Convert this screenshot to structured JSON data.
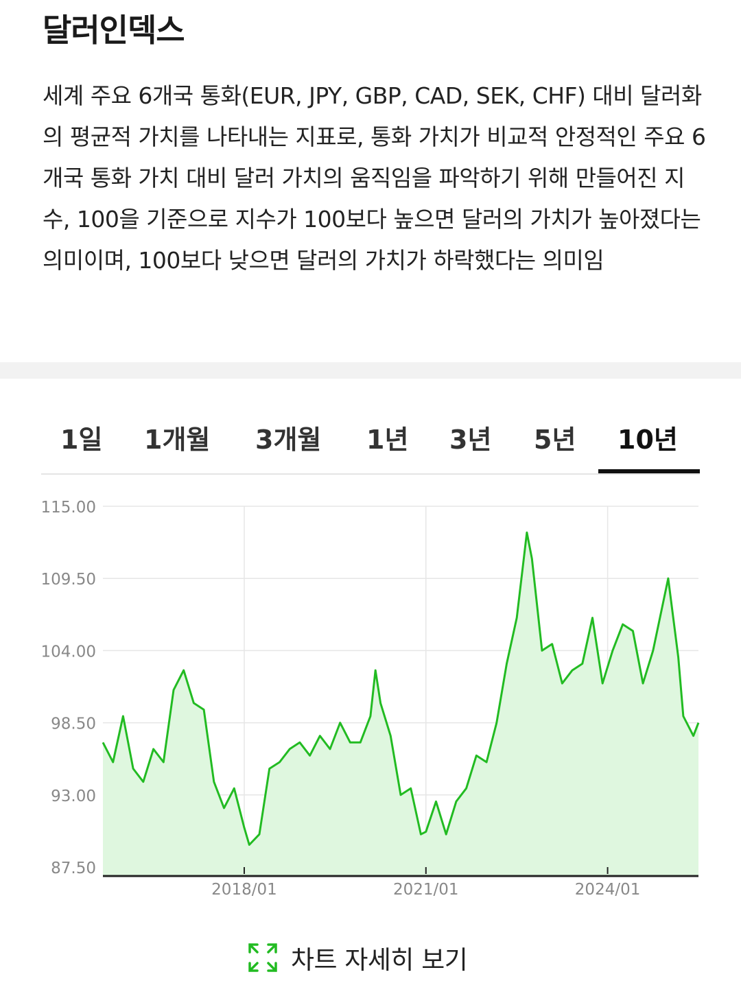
{
  "title": "달러인덱스",
  "description": "세계 주요 6개국 통화(EUR, JPY, GBP, CAD, SEK, CHF) 대비 달러화의 평균적 가치를 나타내는 지표로, 통화 가치가 비교적 안정적인 주요 6개국 통화 가치 대비 달러 가치의 움직임을 파악하기 위해 만들어진 지수, 100을 기준으로 지수가 100보다 높으면 달러의 가치가 높아졌다는 의미이며, 100보다 낮으면 달러의 가치가 하락했다는 의미임",
  "tabs": [
    {
      "label": "1일",
      "active": false
    },
    {
      "label": "1개월",
      "active": false
    },
    {
      "label": "3개월",
      "active": false
    },
    {
      "label": "1년",
      "active": false
    },
    {
      "label": "3년",
      "active": false
    },
    {
      "label": "5년",
      "active": false
    },
    {
      "label": "10년",
      "active": true
    }
  ],
  "detail_link": {
    "label": "차트 자세히 보기",
    "icon": "expand-icon"
  },
  "colors": {
    "line": "#22bb22",
    "fill": "#dff7df",
    "grid": "#e6e6e6",
    "axis": "#222222",
    "tick_text": "#888888"
  },
  "chart_data": {
    "type": "area",
    "title": "",
    "xlabel": "",
    "ylabel": "",
    "ylim": [
      87.5,
      115.0
    ],
    "xlim": [
      "2015-09",
      "2025-07"
    ],
    "y_ticks": [
      "115.00",
      "109.50",
      "104.00",
      "98.50",
      "93.00",
      "87.50"
    ],
    "x_ticks": [
      {
        "date": "2018-01",
        "label": "2018/01"
      },
      {
        "date": "2021-01",
        "label": "2021/01"
      },
      {
        "date": "2024-01",
        "label": "2024/01"
      }
    ],
    "grid": true,
    "series": [
      {
        "x": [
          "2015-09",
          "2015-11",
          "2016-01",
          "2016-03",
          "2016-05",
          "2016-07",
          "2016-09",
          "2016-11",
          "2017-01",
          "2017-03",
          "2017-05",
          "2017-07",
          "2017-09",
          "2017-11",
          "2018-01",
          "2018-02",
          "2018-04",
          "2018-06",
          "2018-08",
          "2018-10",
          "2018-12",
          "2019-02",
          "2019-04",
          "2019-06",
          "2019-08",
          "2019-10",
          "2019-12",
          "2020-02",
          "2020-03",
          "2020-04",
          "2020-06",
          "2020-08",
          "2020-10",
          "2020-12",
          "2021-01",
          "2021-03",
          "2021-05",
          "2021-07",
          "2021-09",
          "2021-11",
          "2022-01",
          "2022-03",
          "2022-05",
          "2022-07",
          "2022-09",
          "2022-10",
          "2022-12",
          "2023-02",
          "2023-04",
          "2023-06",
          "2023-08",
          "2023-10",
          "2023-12",
          "2024-02",
          "2024-04",
          "2024-06",
          "2024-08",
          "2024-10",
          "2025-01",
          "2025-03",
          "2025-04",
          "2025-06",
          "2025-07"
        ],
        "y": [
          97.0,
          95.5,
          99.0,
          95.0,
          94.0,
          96.5,
          95.5,
          101.0,
          102.5,
          100.0,
          99.5,
          94.0,
          92.0,
          93.5,
          90.5,
          89.2,
          90.0,
          95.0,
          95.5,
          96.5,
          97.0,
          96.0,
          97.5,
          96.5,
          98.5,
          97.0,
          97.0,
          99.0,
          102.5,
          100.0,
          97.5,
          93.0,
          93.5,
          90.0,
          90.2,
          92.5,
          90.0,
          92.5,
          93.5,
          96.0,
          95.5,
          98.5,
          103.0,
          106.5,
          113.0,
          111.0,
          104.0,
          104.5,
          101.5,
          102.5,
          103.0,
          106.5,
          101.5,
          104.0,
          106.0,
          105.5,
          101.5,
          104.0,
          109.5,
          103.5,
          99.0,
          97.5,
          98.5
        ]
      }
    ]
  }
}
